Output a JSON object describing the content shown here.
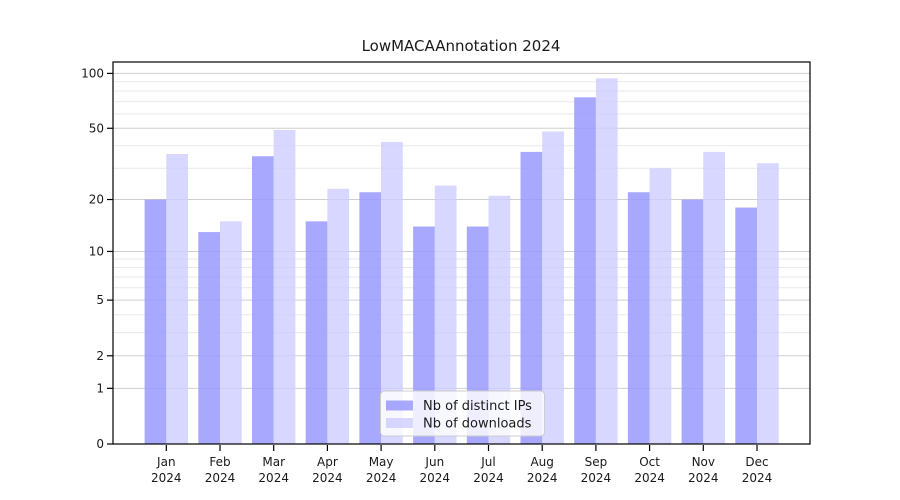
{
  "chart_data": {
    "type": "bar",
    "title": "LowMACAAnnotation 2024",
    "year_label": "2024",
    "categories": [
      "Jan",
      "Feb",
      "Mar",
      "Apr",
      "May",
      "Jun",
      "Jul",
      "Aug",
      "Sep",
      "Oct",
      "Nov",
      "Dec"
    ],
    "series": [
      {
        "name": "Nb of distinct IPs",
        "color": "#9999ff",
        "values": [
          20,
          13,
          35,
          15,
          22,
          14,
          14,
          37,
          74,
          22,
          20,
          18
        ]
      },
      {
        "name": "Nb of downloads",
        "color": "#ccccff",
        "values": [
          36,
          15,
          49,
          23,
          42,
          24,
          21,
          48,
          94,
          30,
          37,
          32
        ]
      }
    ],
    "xlabel": "",
    "ylabel": "",
    "y_axis": {
      "scale": "log1p",
      "tick_labels": [
        "100",
        "50",
        "20",
        "10",
        "5",
        "2",
        "1",
        "0"
      ],
      "major_ticks": [
        100,
        50,
        20,
        10,
        5,
        2,
        1,
        0
      ],
      "minor_gridlines": [
        3,
        4,
        6,
        7,
        8,
        9,
        30,
        40,
        60,
        70,
        80,
        90
      ],
      "ylim": [
        0,
        116
      ]
    },
    "legend": {
      "position": "lower center",
      "entries": [
        "Nb of distinct IPs",
        "Nb of downloads"
      ]
    },
    "grid": "on"
  }
}
